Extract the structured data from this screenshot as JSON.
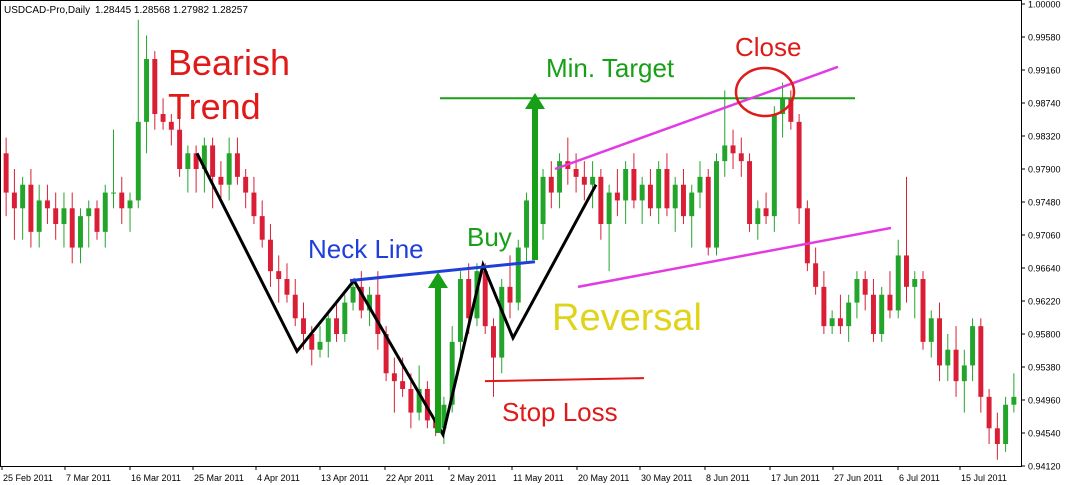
{
  "header": {
    "symbol": "USDCAD-Pro,Daily",
    "ohlc": "1.28445 1.28568 1.27982 1.28257"
  },
  "annotations": {
    "bearish": "Bearish",
    "trend": "Trend",
    "neck_line": "Neck Line",
    "buy": "Buy",
    "min_target": "Min. Target",
    "close": "Close",
    "reversal": "Reversal",
    "stop_loss": "Stop Loss"
  },
  "colors": {
    "bull": "#22a52a",
    "bear": "#d91e36",
    "neckline": "#1f3fd9",
    "channel": "#e33be3",
    "target": "#17a017",
    "annotation_red": "#e01919",
    "reversal": "#e0d41a",
    "pattern": "#000000"
  },
  "chart_data": {
    "type": "candlestick",
    "title": "USDCAD-Pro,Daily",
    "y_axis_side": "right",
    "ylim": [
      0.9412,
      1.0
    ],
    "y_ticks": [
      "1.00000",
      "0.99580",
      "0.99160",
      "0.98740",
      "0.98320",
      "0.97900",
      "0.97480",
      "0.97060",
      "0.96640",
      "0.96220",
      "0.95800",
      "0.95380",
      "0.94960",
      "0.94540",
      "0.94120"
    ],
    "x_ticks": [
      "25 Feb 2011",
      "7 Mar 2011",
      "16 Mar 2011",
      "25 Mar 2011",
      "4 Apr 2011",
      "13 Apr 2011",
      "22 Apr 2011",
      "2 May 2011",
      "11 May 2011",
      "20 May 2011",
      "30 May 2011",
      "8 Jun 2011",
      "17 Jun 2011",
      "27 Jun 2011",
      "6 Jul 2011",
      "15 Jul 2011"
    ],
    "candles": [
      {
        "o": 0.981,
        "h": 0.983,
        "l": 0.973,
        "c": 0.976
      },
      {
        "o": 0.976,
        "h": 0.979,
        "l": 0.97,
        "c": 0.974
      },
      {
        "o": 0.974,
        "h": 0.978,
        "l": 0.97,
        "c": 0.977
      },
      {
        "o": 0.977,
        "h": 0.979,
        "l": 0.969,
        "c": 0.971
      },
      {
        "o": 0.971,
        "h": 0.977,
        "l": 0.969,
        "c": 0.975
      },
      {
        "o": 0.975,
        "h": 0.977,
        "l": 0.972,
        "c": 0.974
      },
      {
        "o": 0.974,
        "h": 0.976,
        "l": 0.97,
        "c": 0.972
      },
      {
        "o": 0.972,
        "h": 0.976,
        "l": 0.969,
        "c": 0.974
      },
      {
        "o": 0.974,
        "h": 0.976,
        "l": 0.967,
        "c": 0.969
      },
      {
        "o": 0.969,
        "h": 0.974,
        "l": 0.967,
        "c": 0.973
      },
      {
        "o": 0.973,
        "h": 0.975,
        "l": 0.969,
        "c": 0.974
      },
      {
        "o": 0.974,
        "h": 0.975,
        "l": 0.97,
        "c": 0.971
      },
      {
        "o": 0.971,
        "h": 0.977,
        "l": 0.969,
        "c": 0.976
      },
      {
        "o": 0.976,
        "h": 0.984,
        "l": 0.974,
        "c": 0.976
      },
      {
        "o": 0.976,
        "h": 0.978,
        "l": 0.972,
        "c": 0.974
      },
      {
        "o": 0.974,
        "h": 0.976,
        "l": 0.971,
        "c": 0.975
      },
      {
        "o": 0.975,
        "h": 0.998,
        "l": 0.974,
        "c": 0.985
      },
      {
        "o": 0.985,
        "h": 0.996,
        "l": 0.981,
        "c": 0.993
      },
      {
        "o": 0.993,
        "h": 0.994,
        "l": 0.984,
        "c": 0.986
      },
      {
        "o": 0.986,
        "h": 0.988,
        "l": 0.984,
        "c": 0.985
      },
      {
        "o": 0.985,
        "h": 0.986,
        "l": 0.982,
        "c": 0.984
      },
      {
        "o": 0.984,
        "h": 0.986,
        "l": 0.978,
        "c": 0.979
      },
      {
        "o": 0.979,
        "h": 0.982,
        "l": 0.976,
        "c": 0.981
      },
      {
        "o": 0.981,
        "h": 0.982,
        "l": 0.976,
        "c": 0.979
      },
      {
        "o": 0.979,
        "h": 0.983,
        "l": 0.976,
        "c": 0.982
      },
      {
        "o": 0.982,
        "h": 0.983,
        "l": 0.974,
        "c": 0.978
      },
      {
        "o": 0.978,
        "h": 0.98,
        "l": 0.975,
        "c": 0.977
      },
      {
        "o": 0.977,
        "h": 0.983,
        "l": 0.975,
        "c": 0.981
      },
      {
        "o": 0.981,
        "h": 0.983,
        "l": 0.977,
        "c": 0.978
      },
      {
        "o": 0.978,
        "h": 0.979,
        "l": 0.974,
        "c": 0.976
      },
      {
        "o": 0.976,
        "h": 0.978,
        "l": 0.972,
        "c": 0.973
      },
      {
        "o": 0.973,
        "h": 0.975,
        "l": 0.969,
        "c": 0.97
      },
      {
        "o": 0.97,
        "h": 0.972,
        "l": 0.964,
        "c": 0.966
      },
      {
        "o": 0.966,
        "h": 0.968,
        "l": 0.962,
        "c": 0.965
      },
      {
        "o": 0.965,
        "h": 0.967,
        "l": 0.962,
        "c": 0.963
      },
      {
        "o": 0.963,
        "h": 0.965,
        "l": 0.959,
        "c": 0.96
      },
      {
        "o": 0.96,
        "h": 0.962,
        "l": 0.956,
        "c": 0.958
      },
      {
        "o": 0.958,
        "h": 0.959,
        "l": 0.954,
        "c": 0.956
      },
      {
        "o": 0.956,
        "h": 0.959,
        "l": 0.955,
        "c": 0.957
      },
      {
        "o": 0.957,
        "h": 0.961,
        "l": 0.955,
        "c": 0.96
      },
      {
        "o": 0.96,
        "h": 0.962,
        "l": 0.957,
        "c": 0.958
      },
      {
        "o": 0.958,
        "h": 0.963,
        "l": 0.957,
        "c": 0.962
      },
      {
        "o": 0.962,
        "h": 0.965,
        "l": 0.961,
        "c": 0.964
      },
      {
        "o": 0.964,
        "h": 0.966,
        "l": 0.96,
        "c": 0.961
      },
      {
        "o": 0.961,
        "h": 0.964,
        "l": 0.959,
        "c": 0.963
      },
      {
        "o": 0.963,
        "h": 0.966,
        "l": 0.956,
        "c": 0.958
      },
      {
        "o": 0.958,
        "h": 0.959,
        "l": 0.952,
        "c": 0.953
      },
      {
        "o": 0.953,
        "h": 0.955,
        "l": 0.948,
        "c": 0.952
      },
      {
        "o": 0.952,
        "h": 0.955,
        "l": 0.95,
        "c": 0.951
      },
      {
        "o": 0.951,
        "h": 0.953,
        "l": 0.946,
        "c": 0.948
      },
      {
        "o": 0.948,
        "h": 0.954,
        "l": 0.947,
        "c": 0.951
      },
      {
        "o": 0.951,
        "h": 0.952,
        "l": 0.946,
        "c": 0.947
      },
      {
        "o": 0.947,
        "h": 0.948,
        "l": 0.945,
        "c": 0.946
      },
      {
        "o": 0.946,
        "h": 0.95,
        "l": 0.944,
        "c": 0.949
      },
      {
        "o": 0.949,
        "h": 0.959,
        "l": 0.948,
        "c": 0.957
      },
      {
        "o": 0.957,
        "h": 0.966,
        "l": 0.955,
        "c": 0.965
      },
      {
        "o": 0.965,
        "h": 0.967,
        "l": 0.958,
        "c": 0.96
      },
      {
        "o": 0.96,
        "h": 0.967,
        "l": 0.959,
        "c": 0.966
      },
      {
        "o": 0.966,
        "h": 0.967,
        "l": 0.958,
        "c": 0.959
      },
      {
        "o": 0.959,
        "h": 0.96,
        "l": 0.95,
        "c": 0.955
      },
      {
        "o": 0.955,
        "h": 0.965,
        "l": 0.953,
        "c": 0.964
      },
      {
        "o": 0.964,
        "h": 0.968,
        "l": 0.96,
        "c": 0.962
      },
      {
        "o": 0.962,
        "h": 0.97,
        "l": 0.961,
        "c": 0.969
      },
      {
        "o": 0.969,
        "h": 0.976,
        "l": 0.967,
        "c": 0.975
      },
      {
        "o": 0.975,
        "h": 0.977,
        "l": 0.971,
        "c": 0.972
      },
      {
        "o": 0.972,
        "h": 0.979,
        "l": 0.97,
        "c": 0.978
      },
      {
        "o": 0.978,
        "h": 0.98,
        "l": 0.974,
        "c": 0.976
      },
      {
        "o": 0.976,
        "h": 0.981,
        "l": 0.974,
        "c": 0.98
      },
      {
        "o": 0.98,
        "h": 0.983,
        "l": 0.977,
        "c": 0.979
      },
      {
        "o": 0.979,
        "h": 0.981,
        "l": 0.976,
        "c": 0.978
      },
      {
        "o": 0.978,
        "h": 0.98,
        "l": 0.975,
        "c": 0.977
      },
      {
        "o": 0.977,
        "h": 0.98,
        "l": 0.974,
        "c": 0.978
      },
      {
        "o": 0.978,
        "h": 0.979,
        "l": 0.97,
        "c": 0.972
      },
      {
        "o": 0.972,
        "h": 0.977,
        "l": 0.966,
        "c": 0.976
      },
      {
        "o": 0.976,
        "h": 0.979,
        "l": 0.973,
        "c": 0.975
      },
      {
        "o": 0.975,
        "h": 0.98,
        "l": 0.972,
        "c": 0.979
      },
      {
        "o": 0.979,
        "h": 0.981,
        "l": 0.974,
        "c": 0.975
      },
      {
        "o": 0.975,
        "h": 0.978,
        "l": 0.972,
        "c": 0.977
      },
      {
        "o": 0.977,
        "h": 0.979,
        "l": 0.973,
        "c": 0.974
      },
      {
        "o": 0.974,
        "h": 0.98,
        "l": 0.972,
        "c": 0.979
      },
      {
        "o": 0.979,
        "h": 0.981,
        "l": 0.973,
        "c": 0.974
      },
      {
        "o": 0.974,
        "h": 0.978,
        "l": 0.971,
        "c": 0.977
      },
      {
        "o": 0.977,
        "h": 0.979,
        "l": 0.972,
        "c": 0.973
      },
      {
        "o": 0.973,
        "h": 0.977,
        "l": 0.969,
        "c": 0.976
      },
      {
        "o": 0.976,
        "h": 0.98,
        "l": 0.974,
        "c": 0.978
      },
      {
        "o": 0.978,
        "h": 0.979,
        "l": 0.968,
        "c": 0.969
      },
      {
        "o": 0.969,
        "h": 0.981,
        "l": 0.968,
        "c": 0.98
      },
      {
        "o": 0.98,
        "h": 0.989,
        "l": 0.978,
        "c": 0.982
      },
      {
        "o": 0.982,
        "h": 0.984,
        "l": 0.979,
        "c": 0.981
      },
      {
        "o": 0.981,
        "h": 0.983,
        "l": 0.978,
        "c": 0.98
      },
      {
        "o": 0.98,
        "h": 0.981,
        "l": 0.971,
        "c": 0.972
      },
      {
        "o": 0.972,
        "h": 0.975,
        "l": 0.97,
        "c": 0.974
      },
      {
        "o": 0.974,
        "h": 0.976,
        "l": 0.972,
        "c": 0.973
      },
      {
        "o": 0.973,
        "h": 0.987,
        "l": 0.971,
        "c": 0.986
      },
      {
        "o": 0.986,
        "h": 0.99,
        "l": 0.983,
        "c": 0.988
      },
      {
        "o": 0.988,
        "h": 0.989,
        "l": 0.984,
        "c": 0.985
      },
      {
        "o": 0.985,
        "h": 0.986,
        "l": 0.972,
        "c": 0.974
      },
      {
        "o": 0.974,
        "h": 0.975,
        "l": 0.966,
        "c": 0.967
      },
      {
        "o": 0.967,
        "h": 0.969,
        "l": 0.963,
        "c": 0.964
      },
      {
        "o": 0.964,
        "h": 0.966,
        "l": 0.958,
        "c": 0.959
      },
      {
        "o": 0.959,
        "h": 0.961,
        "l": 0.958,
        "c": 0.96
      },
      {
        "o": 0.96,
        "h": 0.963,
        "l": 0.958,
        "c": 0.959
      },
      {
        "o": 0.959,
        "h": 0.963,
        "l": 0.957,
        "c": 0.962
      },
      {
        "o": 0.962,
        "h": 0.966,
        "l": 0.96,
        "c": 0.965
      },
      {
        "o": 0.965,
        "h": 0.966,
        "l": 0.961,
        "c": 0.963
      },
      {
        "o": 0.963,
        "h": 0.965,
        "l": 0.957,
        "c": 0.958
      },
      {
        "o": 0.958,
        "h": 0.964,
        "l": 0.957,
        "c": 0.963
      },
      {
        "o": 0.963,
        "h": 0.966,
        "l": 0.96,
        "c": 0.961
      },
      {
        "o": 0.961,
        "h": 0.97,
        "l": 0.96,
        "c": 0.968
      },
      {
        "o": 0.968,
        "h": 0.978,
        "l": 0.962,
        "c": 0.964
      },
      {
        "o": 0.964,
        "h": 0.966,
        "l": 0.96,
        "c": 0.965
      },
      {
        "o": 0.965,
        "h": 0.966,
        "l": 0.956,
        "c": 0.957
      },
      {
        "o": 0.957,
        "h": 0.961,
        "l": 0.955,
        "c": 0.96
      },
      {
        "o": 0.96,
        "h": 0.962,
        "l": 0.952,
        "c": 0.954
      },
      {
        "o": 0.954,
        "h": 0.958,
        "l": 0.952,
        "c": 0.956
      },
      {
        "o": 0.956,
        "h": 0.959,
        "l": 0.95,
        "c": 0.952
      },
      {
        "o": 0.952,
        "h": 0.956,
        "l": 0.948,
        "c": 0.954
      },
      {
        "o": 0.954,
        "h": 0.96,
        "l": 0.952,
        "c": 0.959
      },
      {
        "o": 0.959,
        "h": 0.96,
        "l": 0.948,
        "c": 0.95
      },
      {
        "o": 0.95,
        "h": 0.951,
        "l": 0.944,
        "c": 0.946
      },
      {
        "o": 0.946,
        "h": 0.948,
        "l": 0.942,
        "c": 0.944
      },
      {
        "o": 0.944,
        "h": 0.95,
        "l": 0.943,
        "c": 0.949
      },
      {
        "o": 0.949,
        "h": 0.953,
        "l": 0.948,
        "c": 0.95
      }
    ],
    "overlays": {
      "trend_zigzag": [
        [
          0.981,
          0.981
        ],
        [
          0.9558,
          0.9558
        ],
        [
          0.9648,
          0.9648
        ],
        [
          0.9452,
          0.9452
        ],
        [
          0.9668,
          0.9668
        ],
        [
          0.9575,
          0.9575
        ],
        [
          0.977,
          0.977
        ]
      ],
      "neck_line": [
        0.9648,
        0.9672
      ],
      "min_target": 0.988,
      "stop_loss": 0.952,
      "channel_upper": [
        0.979,
        0.992
      ],
      "channel_lower": [
        0.964,
        0.9715
      ]
    }
  }
}
